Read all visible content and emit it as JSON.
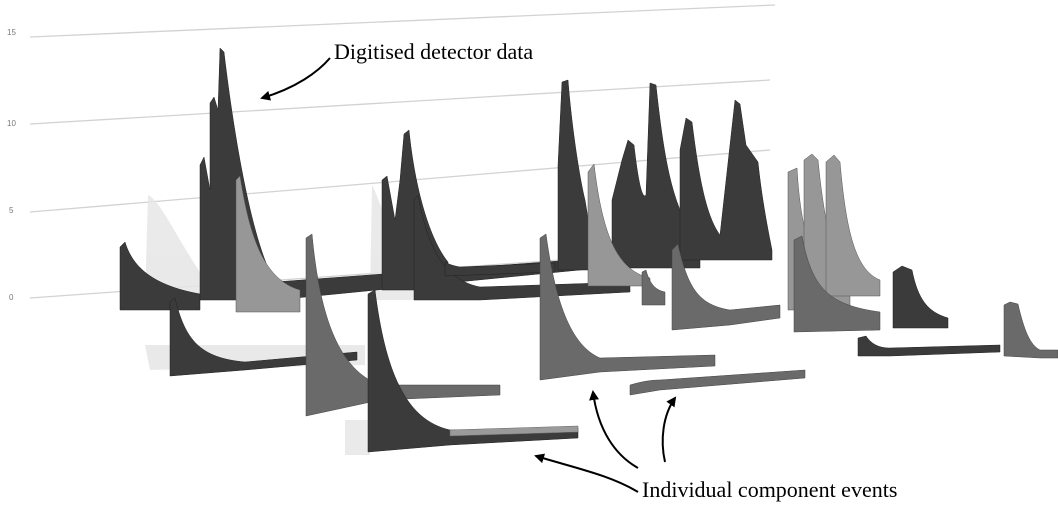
{
  "figure": {
    "axis_ticks": [
      "15",
      "10",
      "5",
      "0"
    ],
    "annotations": {
      "top": "Digitised detector data",
      "bottom": "Individual component events"
    },
    "colors": {
      "dark": "#3b3b3b",
      "medium": "#6a6a6a",
      "light": "#979797",
      "gridline": "#d2d2d2",
      "arrow": "#000000"
    }
  }
}
